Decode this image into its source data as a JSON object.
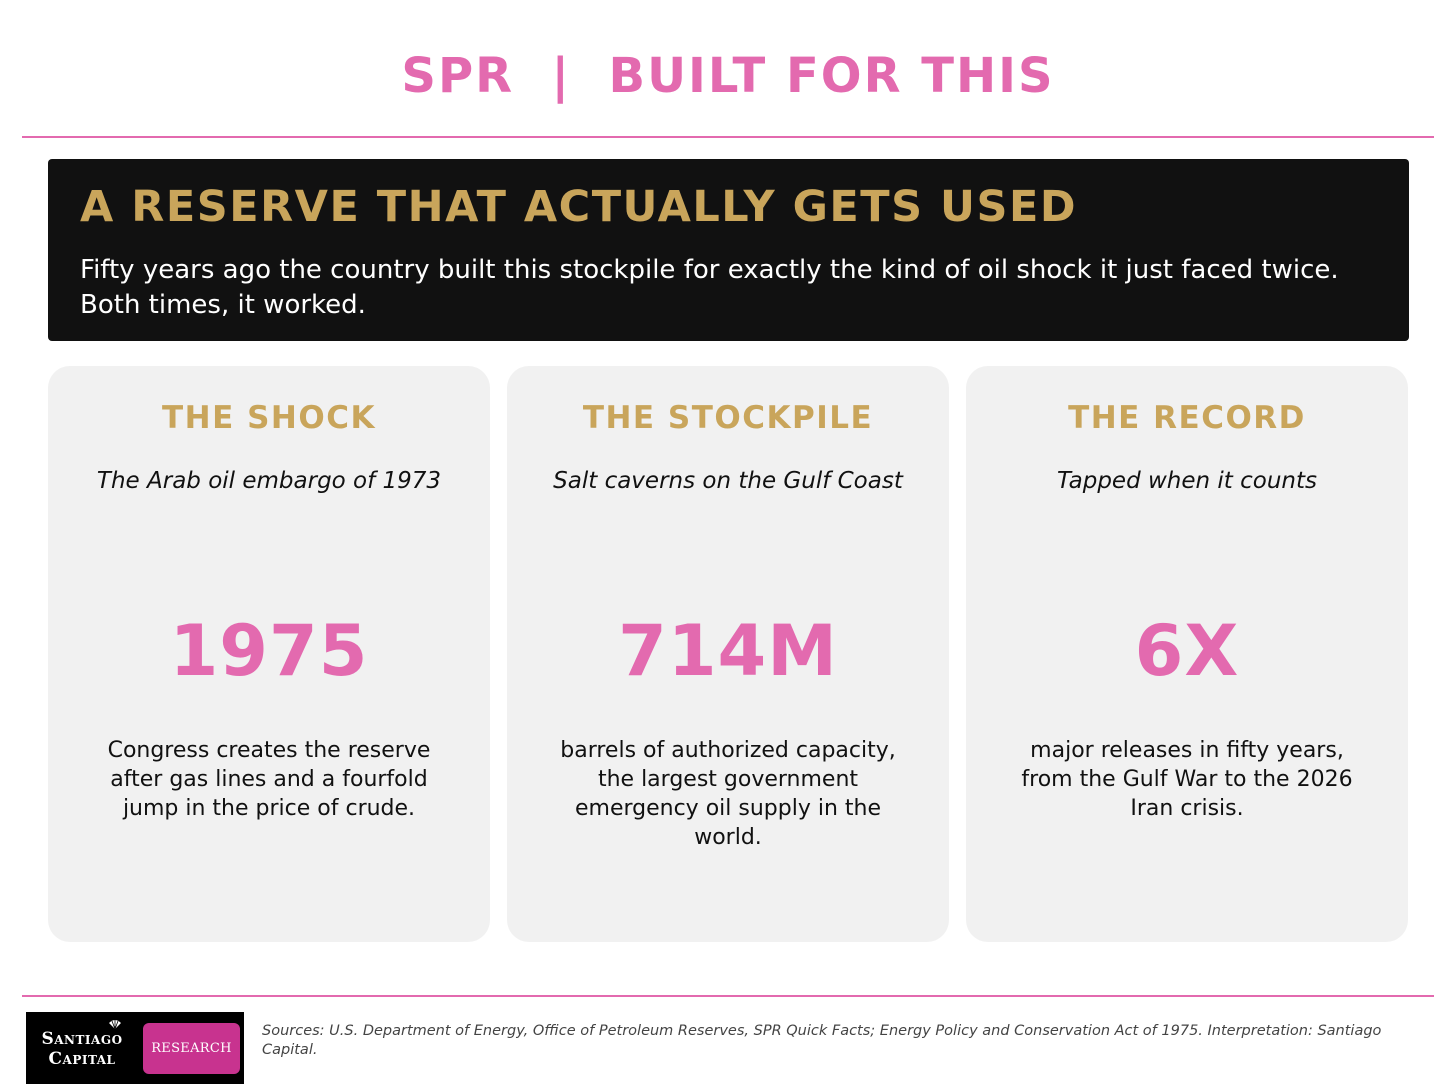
{
  "header": {
    "title": "SPR  |  BUILT FOR THIS"
  },
  "banner": {
    "heading": "A RESERVE THAT ACTUALLY GETS USED",
    "text": "Fifty years ago the country built this stockpile for exactly the kind of oil shock it just faced twice. Both times, it worked."
  },
  "cards": [
    {
      "heading": "THE SHOCK",
      "subtitle": "The Arab oil embargo of 1973",
      "stat": "1975",
      "description": "Congress creates the reserve after gas lines and a fourfold jump in the price of crude."
    },
    {
      "heading": "THE STOCKPILE",
      "subtitle": "Salt caverns on the Gulf Coast",
      "stat": "714M",
      "description": "barrels of authorized capacity, the largest government emergency oil supply in the world."
    },
    {
      "heading": "THE RECORD",
      "subtitle": "Tapped when it counts",
      "stat": "6X",
      "description": "major releases in fifty years, from the Gulf War to the 2026 Iran crisis."
    }
  ],
  "footer": {
    "logo": {
      "line1": "Santiago",
      "line2": "Capital",
      "badge": "RESEARCH"
    },
    "sources": "Sources: U.S. Department of Energy, Office of Petroleum Reserves, SPR Quick Facts; Energy Policy and Conservation Act of 1975. Interpretation: Santiago Capital."
  },
  "colors": {
    "accent_pink": "#e36aaf",
    "accent_gold": "#c9a55b",
    "banner_bg": "#111111",
    "card_bg": "#f1f1f1",
    "badge_magenta": "#c8338f"
  }
}
